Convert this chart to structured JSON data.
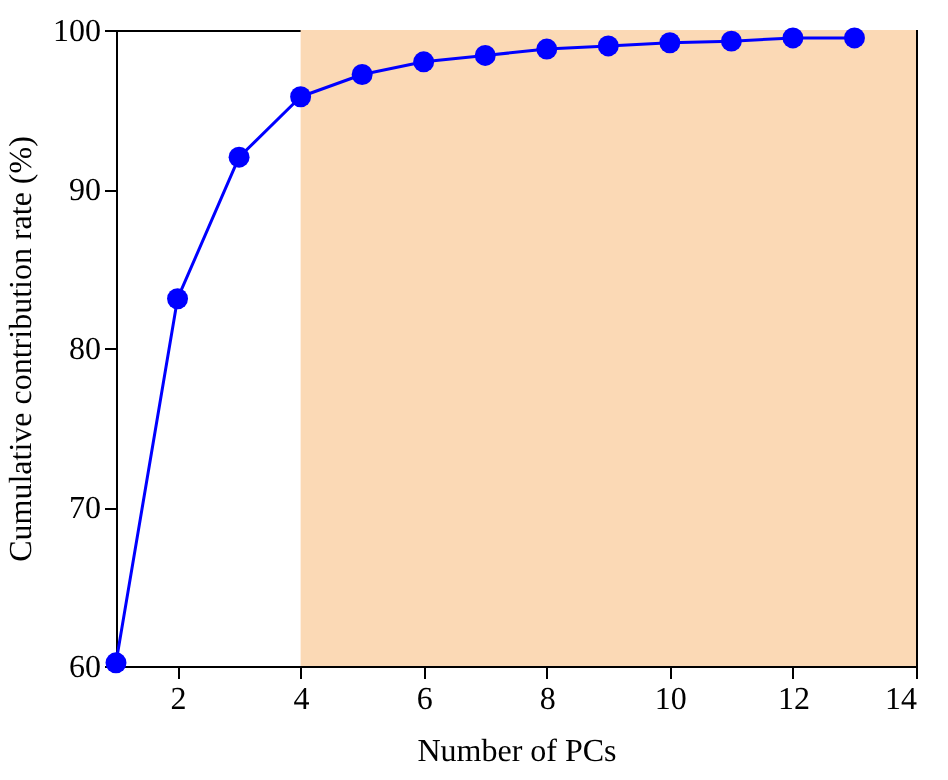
{
  "chart_data": {
    "type": "line",
    "xlabel": "Number of PCs",
    "ylabel": "Cumulative contribution rate (%)",
    "x": [
      1,
      2,
      3,
      4,
      5,
      6,
      7,
      8,
      9,
      10,
      11,
      12,
      13
    ],
    "series": [
      {
        "color": "#0000ff",
        "values": [
          60.2,
          83.1,
          92.0,
          95.8,
          97.2,
          98.0,
          98.4,
          98.8,
          99.0,
          99.2,
          99.3,
          99.5,
          99.5
        ]
      }
    ],
    "xlim": [
      1,
      14
    ],
    "xticks": [
      2,
      4,
      6,
      8,
      10,
      12,
      14
    ],
    "ylim": [
      60,
      100
    ],
    "yticks": [
      60,
      70,
      80,
      90,
      100
    ],
    "bands": [
      {
        "axis": "x",
        "from": 4,
        "to": 14,
        "color": "#fbd9b5"
      }
    ],
    "marker": "circle",
    "line_style": "solid",
    "grid": false
  }
}
